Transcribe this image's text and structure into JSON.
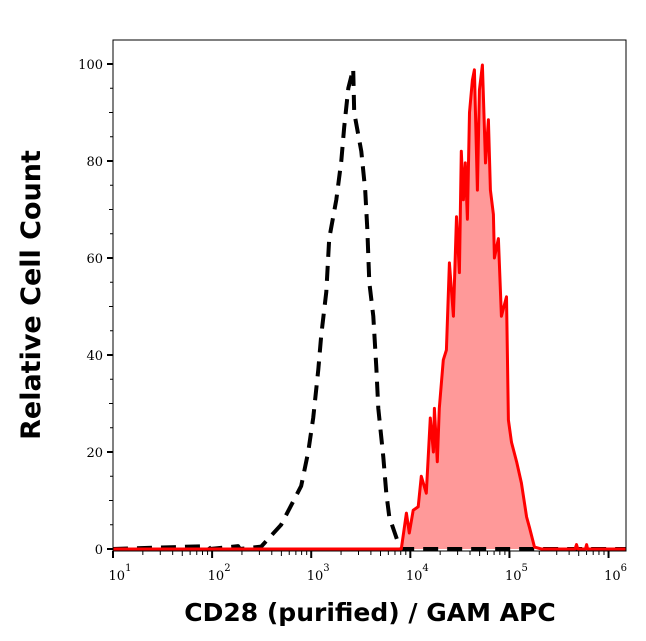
{
  "chart_data": {
    "type": "area",
    "xlabel": "CD28 (purified) / GAM APC",
    "ylabel": "Relative Cell Count",
    "xscale": "log",
    "xlim": [
      10,
      1500000
    ],
    "ylim": [
      0,
      105
    ],
    "grid": false,
    "x_ticks": [
      {
        "value": 10,
        "base": "10",
        "exp": "1"
      },
      {
        "value": 100,
        "base": "10",
        "exp": "2"
      },
      {
        "value": 1000,
        "base": "10",
        "exp": "3"
      },
      {
        "value": 10000,
        "base": "10",
        "exp": "4"
      },
      {
        "value": 100000,
        "base": "10",
        "exp": "5"
      },
      {
        "value": 1000000,
        "base": "10",
        "exp": "6"
      }
    ],
    "y_ticks": [
      {
        "value": 0,
        "label": "0"
      },
      {
        "value": 20,
        "label": "20"
      },
      {
        "value": 40,
        "label": "40"
      },
      {
        "value": 60,
        "label": "60"
      },
      {
        "value": 80,
        "label": "80"
      },
      {
        "value": 100,
        "label": "100"
      }
    ],
    "series": [
      {
        "style": "dashed",
        "color": "#000000",
        "filled": false,
        "x": [
          10,
          91,
          95,
          183,
          190,
          313,
          497,
          792,
          933,
          1047,
          1178,
          1262,
          1419,
          1520,
          1790,
          2010,
          2153,
          2364,
          2655,
          2717,
          3199,
          3508,
          3678,
          3853,
          4227,
          4538,
          4752,
          5336,
          5723,
          6138,
          7568,
          8110,
          1500000
        ],
        "y": [
          0,
          0.6,
          0,
          0.6,
          0,
          0.5,
          5,
          13,
          20,
          27,
          37,
          44,
          53,
          64,
          72,
          80,
          87,
          95,
          99,
          90,
          82,
          74,
          66,
          55,
          48,
          37.5,
          29,
          19,
          11.5,
          6.6,
          1.2,
          0,
          0
        ]
      },
      {
        "style": "solid",
        "color": "#ff0000",
        "fill": "#ff9999",
        "filled": true,
        "x": [
          10,
          8110,
          9120,
          9770,
          10700,
          12000,
          12900,
          14500,
          15900,
          17100,
          17500,
          18700,
          19600,
          21500,
          23100,
          24800,
          27200,
          29200,
          31300,
          32700,
          34300,
          35900,
          37700,
          39500,
          42300,
          44300,
          47500,
          49800,
          53300,
          57300,
          61400,
          64300,
          68900,
          70500,
          77400,
          83000,
          93300,
          97700,
          105000,
          118000,
          132000,
          149000,
          159000,
          179000,
          210000,
          460000,
          475000,
          490000,
          585000,
          600000,
          615000,
          1500000
        ],
        "y": [
          0,
          0,
          7.4,
          3.3,
          8,
          8.7,
          15,
          11.5,
          27,
          20,
          29,
          18,
          29,
          39,
          41,
          59,
          48,
          68.5,
          57,
          82,
          72,
          79.6,
          68,
          90,
          96.7,
          98.8,
          74,
          94.6,
          99.8,
          79.6,
          88.5,
          74,
          69,
          60,
          64,
          48,
          52,
          26.6,
          22,
          18,
          13.6,
          6.6,
          4.5,
          0.4,
          0,
          0,
          0.9,
          0,
          0,
          0.9,
          0,
          0
        ]
      }
    ]
  }
}
